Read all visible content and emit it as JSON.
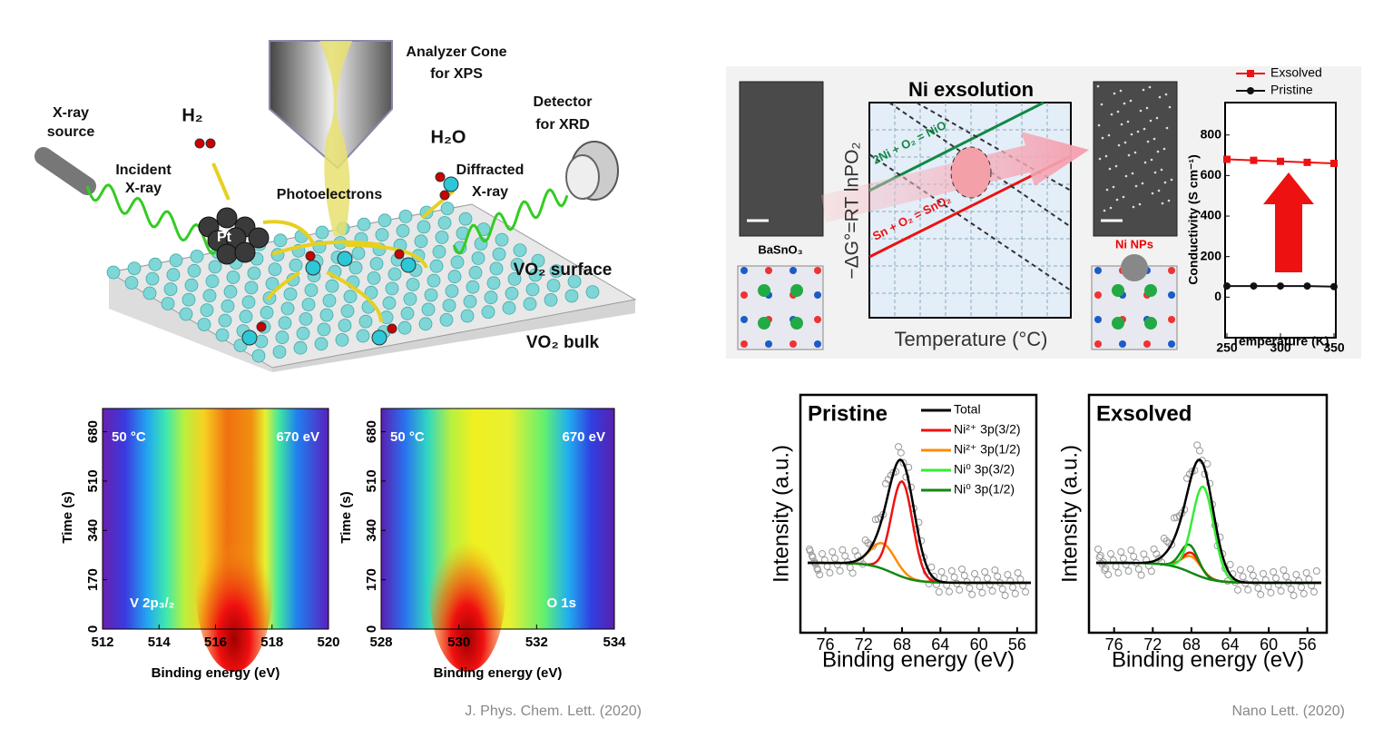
{
  "schematic": {
    "labels": [
      "Analyzer Cone",
      "for XPS",
      "X-ray",
      "source",
      "H₂",
      "Detector",
      "for XRD",
      "H₂O",
      "Incident",
      "X-ray",
      "Diffracted",
      "X-ray",
      "Photoelectrons",
      "Pt",
      "VO₂ surface",
      "VO₂ bulk"
    ]
  },
  "heatmaps": [
    {
      "xlim": [
        512,
        520
      ],
      "ylim": [
        0,
        760
      ],
      "xticks": [
        512,
        514,
        516,
        518,
        520
      ],
      "yticks": [
        0,
        170,
        340,
        510,
        680
      ],
      "xlabel": "Binding energy (eV)",
      "ylabel": "Time (s)",
      "annotations": [
        "50 °C",
        "670 eV",
        "V 2p₃/₂"
      ]
    },
    {
      "xlim": [
        528,
        534
      ],
      "ylim": [
        0,
        760
      ],
      "xticks": [
        528,
        530,
        532,
        534
      ],
      "yticks": [
        0,
        170,
        340,
        510,
        680
      ],
      "xlabel": "Binding energy (eV)",
      "ylabel": "Time (s)",
      "annotations": [
        "50 °C",
        "670 eV",
        "O 1s"
      ]
    }
  ],
  "exsolution": {
    "title": "Ni exsolution",
    "ylabel": "−ΔG°=RT lnPO₂",
    "xlabel": "Temperature (°C)",
    "line_labels": [
      "2Ni + O₂ = NiO",
      "Sn + O₂ = SnO₂"
    ],
    "left_label": "BaSnO₃",
    "right_label": "Ni NPs",
    "conductivity": {
      "type": "line",
      "x": [
        250,
        275,
        300,
        325,
        350
      ],
      "series": [
        {
          "name": "Exsolved",
          "color": "#ee1111",
          "values": [
            680,
            675,
            670,
            665,
            660
          ]
        },
        {
          "name": "Pristine",
          "color": "#111111",
          "values": [
            55,
            55,
            55,
            55,
            52
          ]
        }
      ],
      "xlim": [
        250,
        350
      ],
      "ylim": [
        -200,
        960
      ],
      "xticks": [
        250,
        300,
        350
      ],
      "yticks": [
        0,
        200,
        400,
        600,
        800
      ],
      "xlabel": "Temperature (K)",
      "ylabel": "Conductivity (S cm⁻¹)"
    }
  },
  "xps": {
    "xlim": [
      78.6,
      54
    ],
    "xticks": [
      76,
      72,
      68,
      64,
      60,
      56
    ],
    "xlabel": "Binding energy (eV)",
    "ylabel": "Intensity (a.u.)",
    "titles": [
      "Pristine",
      "Exsolved"
    ],
    "legend": [
      {
        "name": "Total",
        "color": "#000000"
      },
      {
        "name": "Ni²⁺ 3p(3/2)",
        "color": "#ee1111"
      },
      {
        "name": "Ni²⁺ 3p(1/2)",
        "color": "#ff8c00"
      },
      {
        "name": "Ni⁰ 3p(3/2)",
        "color": "#33ee33"
      },
      {
        "name": "Ni⁰ 3p(1/2)",
        "color": "#118811"
      }
    ]
  },
  "citations": [
    "J. Phys. Chem. Lett. (2020)",
    "Nano Lett. (2020)"
  ]
}
